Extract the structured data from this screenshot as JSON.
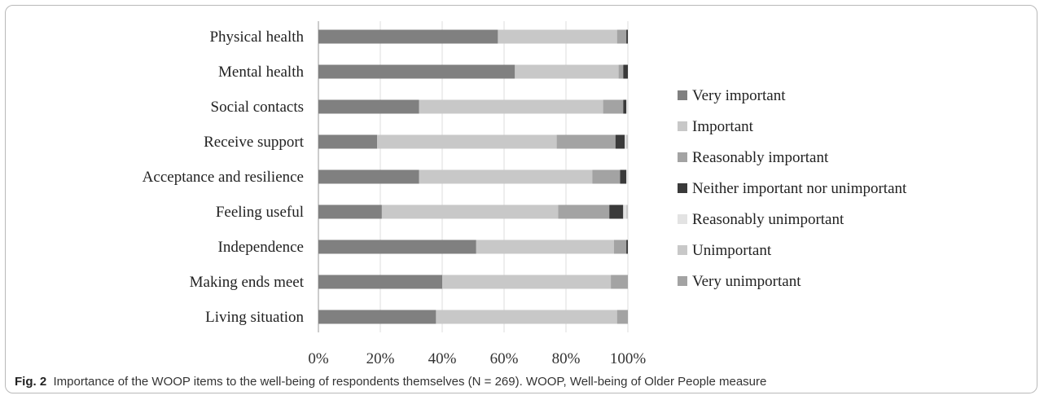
{
  "chart_data": {
    "type": "bar",
    "orientation": "horizontal",
    "stacked": true,
    "percent": true,
    "categories": [
      "Physical health",
      "Mental health",
      "Social contacts",
      "Receive support",
      "Acceptance and resilience",
      "Feeling useful",
      "Independence",
      "Making ends meet",
      "Living situation"
    ],
    "series": [
      {
        "name": "Very important",
        "color": "#808080",
        "values": [
          58,
          63.5,
          32.5,
          19,
          32.5,
          20.5,
          51,
          40,
          38
        ]
      },
      {
        "name": "Important",
        "color": "#c8c8c8",
        "values": [
          38.5,
          33.5,
          59.5,
          58,
          56,
          57,
          44.5,
          54.5,
          58.5
        ]
      },
      {
        "name": "Reasonably important",
        "color": "#a3a3a3",
        "values": [
          3,
          1.5,
          6.5,
          19,
          9,
          16.5,
          4,
          5.5,
          3.5
        ]
      },
      {
        "name": "Neither important nor unimportant",
        "color": "#3a3a3a",
        "values": [
          0.5,
          1.5,
          1,
          3,
          2,
          4.5,
          0.5,
          0,
          0
        ]
      },
      {
        "name": "Reasonably unimportant",
        "color": "#e3e3e3",
        "values": [
          0,
          0,
          0.5,
          0.5,
          0.5,
          1,
          0,
          0,
          0
        ]
      },
      {
        "name": "Unimportant",
        "color": "#c8c8c8",
        "values": [
          0,
          0,
          0,
          0.5,
          0,
          0.5,
          0,
          0,
          0
        ]
      },
      {
        "name": "Very unimportant",
        "color": "#a3a3a3",
        "values": [
          0,
          0,
          0,
          0,
          0,
          0,
          0,
          0,
          0
        ]
      }
    ],
    "xticks": [
      "0%",
      "20%",
      "40%",
      "60%",
      "80%",
      "100%"
    ],
    "xlim": [
      0,
      100
    ],
    "grid": true,
    "legend": "right"
  },
  "caption": {
    "label": "Fig. 2",
    "text": "Importance of the WOOP items to the well-being of respondents themselves (N = 269). WOOP, Well-being of Older People measure"
  }
}
